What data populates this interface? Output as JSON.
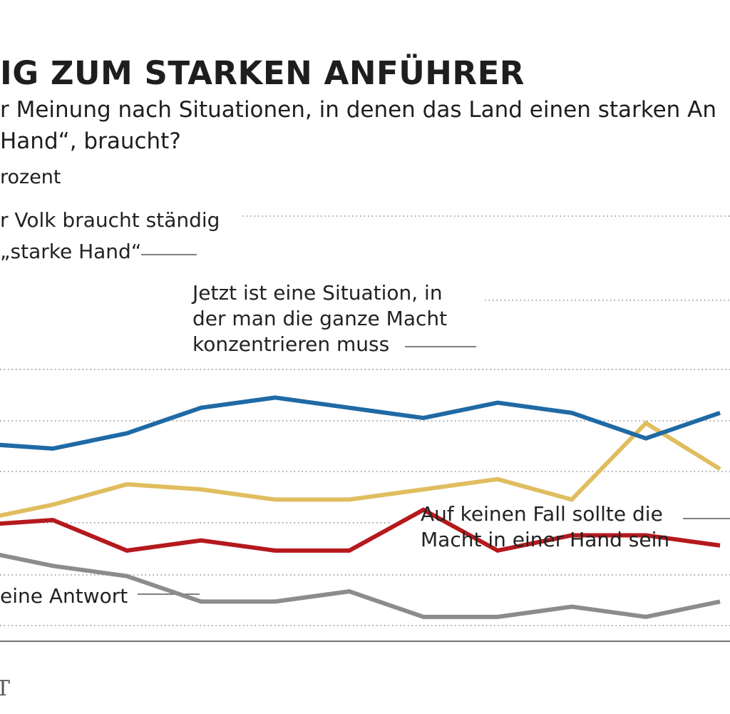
{
  "header": {
    "title": "IG ZUM STARKEN ANFÜHRER",
    "subtitle_line1": "r Meinung nach Situationen, in denen das Land einen starken An",
    "subtitle_line2": "Hand“, braucht?",
    "unit": "rozent"
  },
  "chart_data": {
    "type": "line",
    "x_count": 11,
    "grid": true,
    "series": [
      {
        "name": "Unser Volk braucht ständig eine „starke Hand“",
        "label_lines": [
          "r Volk braucht ständig",
          "„starke Hand“"
        ],
        "color": "#1f6aa5",
        "values": [
          45,
          44,
          47,
          52,
          54,
          52,
          50,
          53,
          51,
          46,
          51
        ]
      },
      {
        "name": "Jetzt ist eine Situation, in der man die ganze Macht konzentrieren muss",
        "label_lines": [
          "Jetzt ist eine Situation, in",
          "der man die  ganze Macht",
          "konzentrieren muss"
        ],
        "color": "#e0bd5f",
        "values": [
          30,
          33,
          37,
          36,
          34,
          34,
          36,
          38,
          34,
          49,
          40
        ]
      },
      {
        "name": "Auf keinen Fall sollte die Macht in einer Hand sein",
        "label_lines": [
          "Auf keinen Fall sollte die",
          "Macht in einer Hand sein"
        ],
        "color": "#b5191d",
        "values": [
          29,
          30,
          24,
          26,
          24,
          24,
          32,
          24,
          27,
          27,
          25
        ]
      },
      {
        "name": "Keine Antwort",
        "label_lines": [
          "eine Antwort"
        ],
        "color": "#8c8c8c",
        "values": [
          24,
          21,
          19,
          14,
          14,
          16,
          11,
          11,
          13,
          11,
          14
        ]
      }
    ]
  }
}
